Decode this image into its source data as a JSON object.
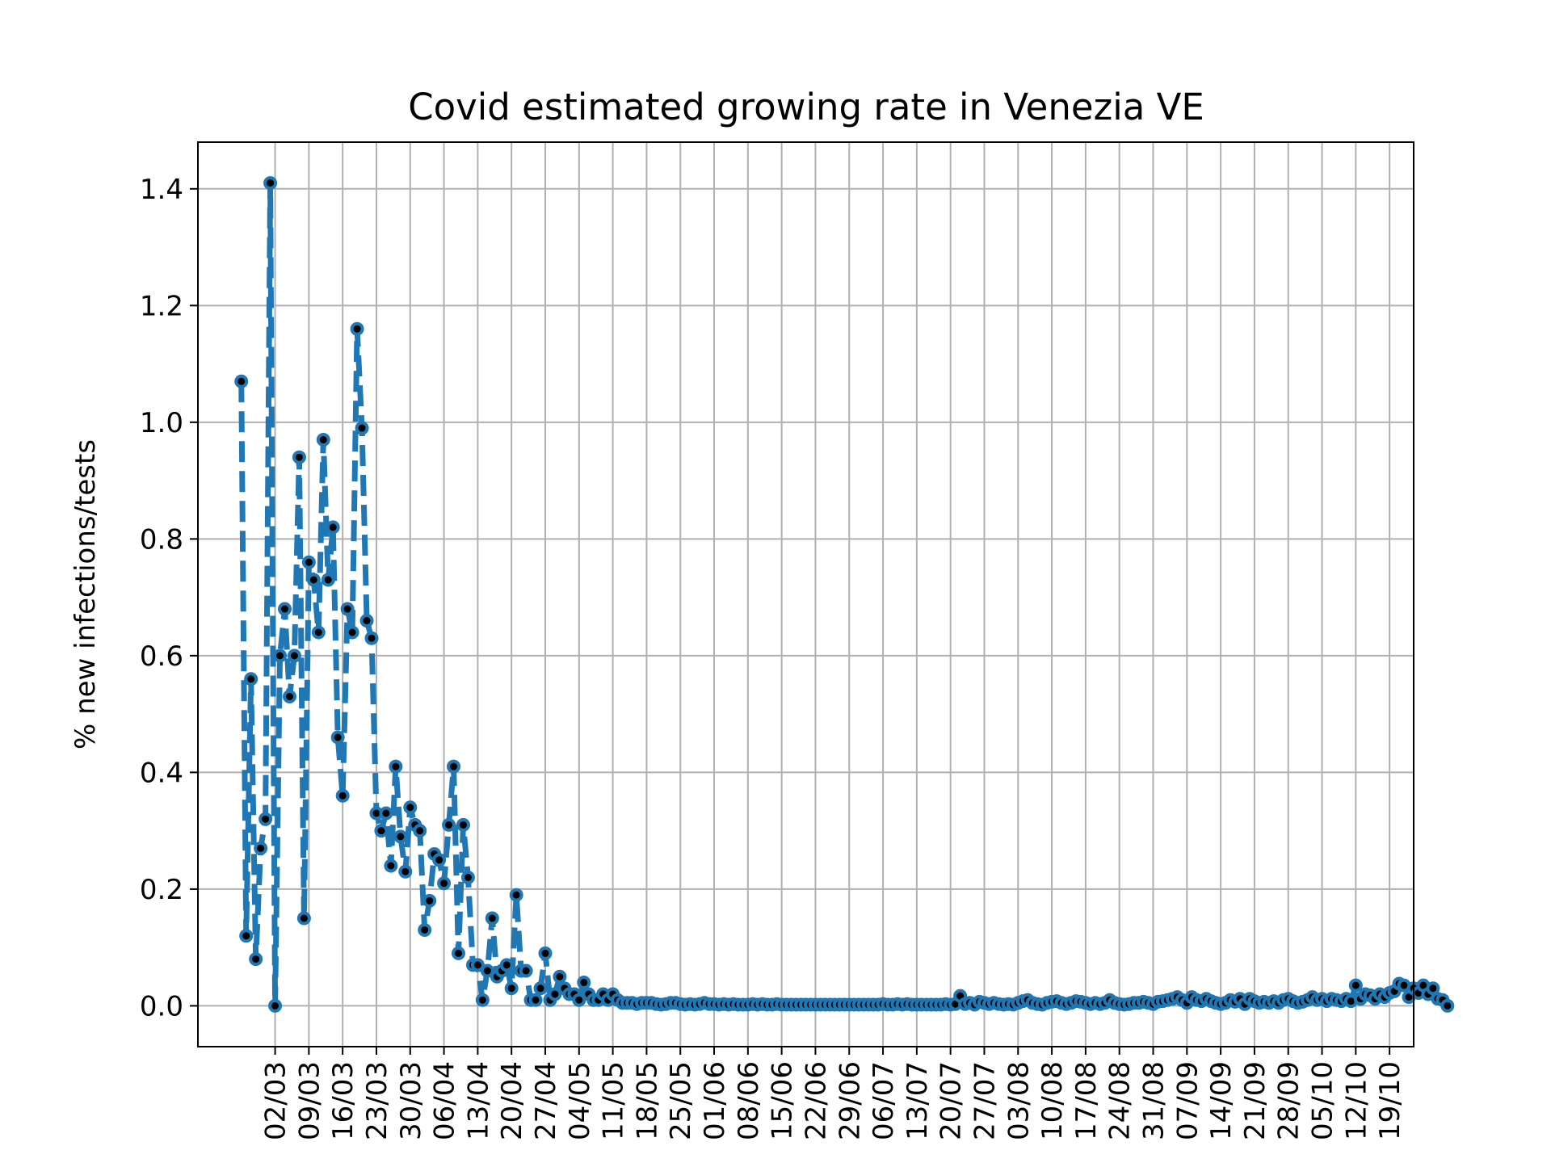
{
  "chart_data": {
    "type": "line",
    "title": "Covid estimated growing rate in Venezia VE",
    "xlabel": "",
    "ylabel": "% new infections/tests",
    "ylim": [
      -0.07,
      1.48
    ],
    "y_ticks": [
      0.0,
      0.2,
      0.4,
      0.6,
      0.8,
      1.0,
      1.2,
      1.4
    ],
    "y_tick_labels": [
      "0.0",
      "0.2",
      "0.4",
      "0.6",
      "0.8",
      "1.0",
      "1.2",
      "1.4"
    ],
    "xlim": [
      "2020-02-15",
      "2020-10-24"
    ],
    "x_ticks": [
      "2020-03-02",
      "2020-03-09",
      "2020-03-16",
      "2020-03-23",
      "2020-03-30",
      "2020-04-06",
      "2020-04-13",
      "2020-04-20",
      "2020-04-27",
      "2020-05-04",
      "2020-05-11",
      "2020-05-18",
      "2020-05-25",
      "2020-06-01",
      "2020-06-08",
      "2020-06-15",
      "2020-06-22",
      "2020-06-29",
      "2020-07-06",
      "2020-07-13",
      "2020-07-20",
      "2020-07-27",
      "2020-08-03",
      "2020-08-10",
      "2020-08-17",
      "2020-08-24",
      "2020-08-31",
      "2020-09-07",
      "2020-09-14",
      "2020-09-21",
      "2020-09-28",
      "2020-10-05",
      "2020-10-12",
      "2020-10-19"
    ],
    "x_tick_labels": [
      "02/03",
      "09/03",
      "16/03",
      "23/03",
      "30/03",
      "06/04",
      "13/04",
      "20/04",
      "27/04",
      "04/05",
      "11/05",
      "18/05",
      "25/05",
      "01/06",
      "08/06",
      "15/06",
      "22/06",
      "29/06",
      "06/07",
      "13/07",
      "20/07",
      "27/07",
      "03/08",
      "10/08",
      "17/08",
      "24/08",
      "31/08",
      "07/09",
      "14/09",
      "21/09",
      "28/09",
      "05/10",
      "12/10",
      "19/10"
    ],
    "grid": true,
    "series": [
      {
        "color": "#1f77b4",
        "line_style": "dashed",
        "marker_color": "#000000",
        "start": "2020-02-24",
        "step_days": 1,
        "values": [
          1.07,
          0.12,
          0.56,
          0.08,
          0.27,
          0.32,
          1.41,
          0.0,
          0.6,
          0.68,
          0.53,
          0.6,
          0.94,
          0.15,
          0.76,
          0.73,
          0.64,
          0.97,
          0.73,
          0.82,
          0.46,
          0.36,
          0.68,
          0.64,
          1.16,
          0.99,
          0.66,
          0.63,
          0.33,
          0.3,
          0.33,
          0.24,
          0.41,
          0.29,
          0.23,
          0.34,
          0.31,
          0.3,
          0.13,
          0.18,
          0.26,
          0.25,
          0.21,
          0.31,
          0.41,
          0.09,
          0.31,
          0.22,
          0.07,
          0.07,
          0.01,
          0.06,
          0.15,
          0.05,
          0.06,
          0.07,
          0.03,
          0.19,
          0.06,
          0.06,
          0.01,
          0.01,
          0.03,
          0.09,
          0.01,
          0.02,
          0.05,
          0.03,
          0.02,
          0.02,
          0.01,
          0.04,
          0.02,
          0.01,
          0.01,
          0.02,
          0.01,
          0.02,
          0.01,
          0.005,
          0.005,
          0.005,
          0.003,
          0.005,
          0.005,
          0.005,
          0.003,
          0.002,
          0.003,
          0.005,
          0.005,
          0.003,
          0.002,
          0.003,
          0.002,
          0.003,
          0.005,
          0.003,
          0.003,
          0.002,
          0.003,
          0.002,
          0.003,
          0.002,
          0.002,
          0.002,
          0.003,
          0.002,
          0.003,
          0.002,
          0.002,
          0.003,
          0.002,
          0.002,
          0.002,
          0.002,
          0.002,
          0.002,
          0.002,
          0.002,
          0.002,
          0.002,
          0.002,
          0.002,
          0.002,
          0.002,
          0.002,
          0.002,
          0.002,
          0.002,
          0.002,
          0.002,
          0.002,
          0.003,
          0.002,
          0.002,
          0.003,
          0.002,
          0.003,
          0.002,
          0.002,
          0.002,
          0.002,
          0.002,
          0.002,
          0.002,
          0.003,
          0.002,
          0.003,
          0.017,
          0.003,
          0.005,
          0.002,
          0.007,
          0.005,
          0.003,
          0.005,
          0.003,
          0.002,
          0.003,
          0.002,
          0.005,
          0.008,
          0.01,
          0.005,
          0.003,
          0.002,
          0.005,
          0.007,
          0.008,
          0.005,
          0.003,
          0.005,
          0.008,
          0.007,
          0.005,
          0.003,
          0.005,
          0.003,
          0.005,
          0.01,
          0.005,
          0.003,
          0.002,
          0.003,
          0.005,
          0.005,
          0.007,
          0.005,
          0.003,
          0.007,
          0.008,
          0.01,
          0.012,
          0.015,
          0.01,
          0.005,
          0.015,
          0.01,
          0.008,
          0.012,
          0.008,
          0.005,
          0.003,
          0.005,
          0.01,
          0.007,
          0.012,
          0.003,
          0.012,
          0.008,
          0.005,
          0.007,
          0.005,
          0.008,
          0.005,
          0.01,
          0.012,
          0.008,
          0.005,
          0.007,
          0.01,
          0.015,
          0.01,
          0.012,
          0.008,
          0.012,
          0.01,
          0.008,
          0.012,
          0.008,
          0.035,
          0.012,
          0.02,
          0.018,
          0.012,
          0.02,
          0.015,
          0.022,
          0.025,
          0.038,
          0.035,
          0.015,
          0.03,
          0.022,
          0.035,
          0.02,
          0.03,
          0.012,
          0.01,
          0.0
        ]
      }
    ]
  }
}
